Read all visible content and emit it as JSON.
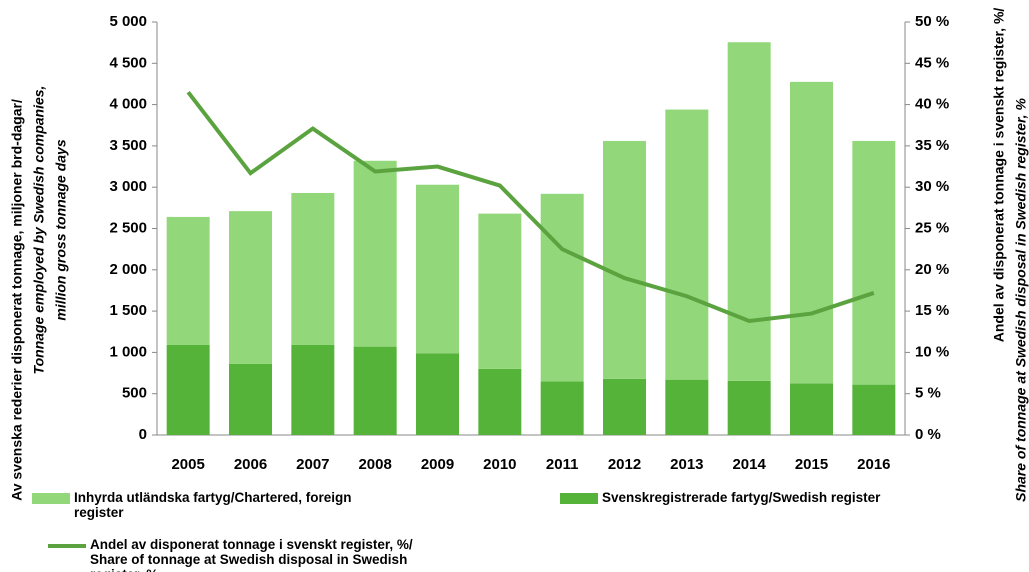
{
  "chart_data": {
    "type": "bar+line",
    "categories": [
      "2005",
      "2006",
      "2007",
      "2008",
      "2009",
      "2010",
      "2011",
      "2012",
      "2013",
      "2014",
      "2015",
      "2016"
    ],
    "series": [
      {
        "name": "Inhyrda utländska fartyg/Chartered, foreign register",
        "color": "#92d87a",
        "type": "bar",
        "values": [
          1550,
          1850,
          1840,
          2250,
          2040,
          1880,
          2270,
          2880,
          3270,
          4100,
          3650,
          2950
        ]
      },
      {
        "name": "Svenskregistrerade fartyg/Swedish register",
        "color": "#56b33a",
        "type": "bar",
        "values": [
          1090,
          860,
          1090,
          1070,
          990,
          800,
          650,
          680,
          670,
          655,
          625,
          610
        ]
      },
      {
        "name": "Andel av disponerat tonnage i svenskt register, %/ Share of tonnage at Swedish disposal in Swedish register, %",
        "color": "#5aa33f",
        "type": "line",
        "axis": "y2",
        "values": [
          41.5,
          31.7,
          37.1,
          31.9,
          32.5,
          30.2,
          22.5,
          19.0,
          16.8,
          13.8,
          14.7,
          17.2
        ]
      }
    ],
    "ylabel": [
      "Av svenska rederier disponerat tonnage, miljoner brd-dagar/",
      "Tonnage employed by Swedish companies,",
      "million gross tonnage days"
    ],
    "y2label": [
      "Andel av disponerat tonnage i svenskt register, %/",
      "Share of tonnage at Swedish disposal in Swedish register, %"
    ],
    "ylim": [
      0,
      5000
    ],
    "yticks": [
      0,
      500,
      {
        "value": 1000,
        "label": "1 000"
      },
      {
        "value": 1500,
        "label": "1 500"
      },
      {
        "value": 2000,
        "label": "2 000"
      },
      {
        "value": 2500,
        "label": "2 500"
      },
      {
        "value": 3000,
        "label": "3 000"
      },
      {
        "value": 3500,
        "label": "3 500"
      },
      {
        "value": 4000,
        "label": "4 000"
      },
      {
        "value": 4500,
        "label": "4 500"
      },
      {
        "value": 5000,
        "label": "5 000"
      }
    ],
    "y2lim": [
      0,
      50
    ],
    "y2ticks": [
      {
        "value": 0,
        "label": "0 %"
      },
      {
        "value": 5,
        "label": "5 %"
      },
      {
        "value": 10,
        "label": "10 %"
      },
      {
        "value": 15,
        "label": "15 %"
      },
      {
        "value": 20,
        "label": "20 %"
      },
      {
        "value": 25,
        "label": "25 %"
      },
      {
        "value": 30,
        "label": "30 %"
      },
      {
        "value": 35,
        "label": "35 %"
      },
      {
        "value": 40,
        "label": "40 %"
      },
      {
        "value": 45,
        "label": "45 %"
      },
      {
        "value": 50,
        "label": "50 %"
      }
    ]
  }
}
